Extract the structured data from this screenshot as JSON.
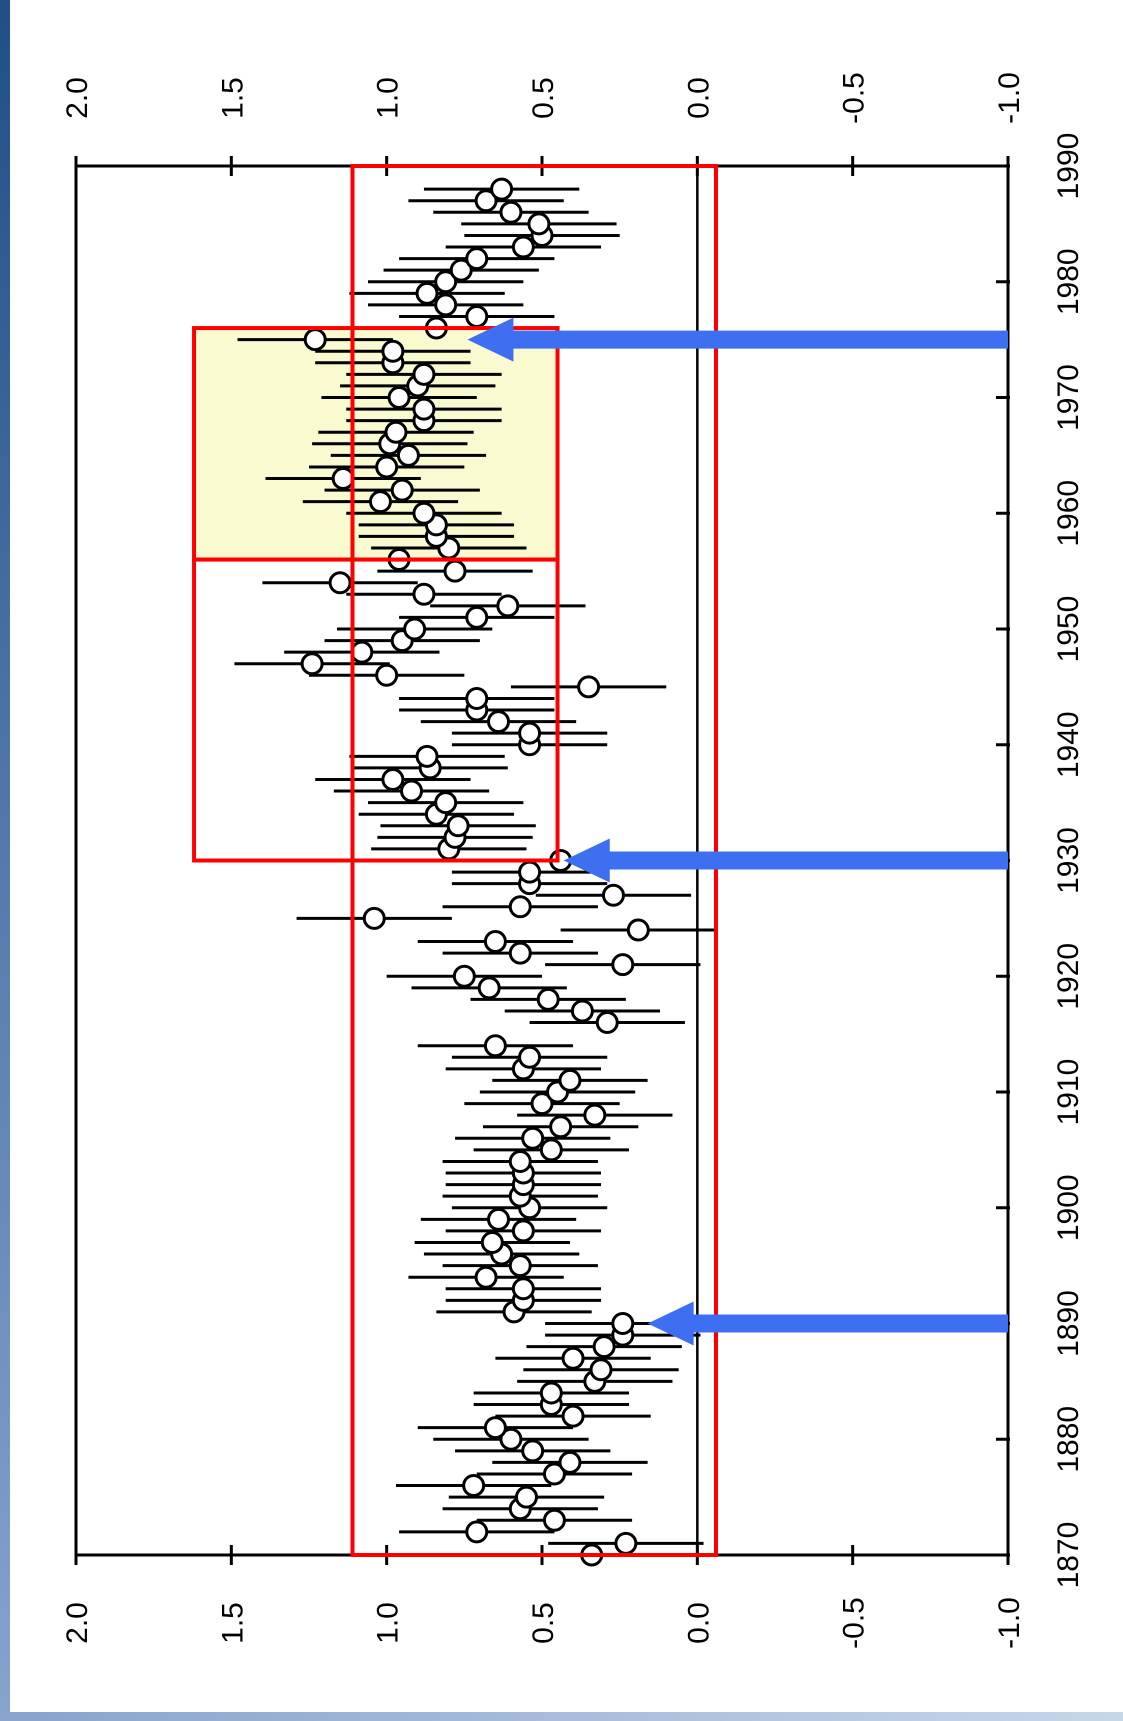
{
  "chart_data": {
    "type": "scatter",
    "orientation": "rotated-90",
    "title": "",
    "xlabel": "",
    "ylabel": "",
    "xlim": [
      1870,
      1990
    ],
    "ylim": [
      -1.0,
      2.0
    ],
    "x_ticks": [
      "1870",
      "1880",
      "1890",
      "1900",
      "1910",
      "1920",
      "1930",
      "1940",
      "1950",
      "1960",
      "1970",
      "1980",
      "1990"
    ],
    "y_ticks_left": [
      "2.0",
      "1.5",
      "1.0",
      "0.5",
      "0.0",
      "-0.5",
      "-1.0"
    ],
    "y_ticks_right": [
      "-1.0",
      "-0.5",
      "0.0",
      "0.5",
      "1.0",
      "1.5",
      "2.0"
    ],
    "zero_line": 0.0,
    "error_bar_halfwidth": 0.25,
    "series": [
      {
        "marker": "open-circle",
        "points": [
          [
            1870,
            0.34
          ],
          [
            1871,
            0.23
          ],
          [
            1872,
            0.71
          ],
          [
            1873,
            0.46
          ],
          [
            1874,
            0.57
          ],
          [
            1875,
            0.55
          ],
          [
            1876,
            0.72
          ],
          [
            1877,
            0.46
          ],
          [
            1878,
            0.41
          ],
          [
            1879,
            0.53
          ],
          [
            1880,
            0.6
          ],
          [
            1881,
            0.65
          ],
          [
            1882,
            0.4
          ],
          [
            1883,
            0.47
          ],
          [
            1884,
            0.47
          ],
          [
            1885,
            0.33
          ],
          [
            1886,
            0.31
          ],
          [
            1887,
            0.4
          ],
          [
            1888,
            0.3
          ],
          [
            1889,
            0.24
          ],
          [
            1890,
            0.24
          ],
          [
            1891,
            0.59
          ],
          [
            1892,
            0.56
          ],
          [
            1893,
            0.56
          ],
          [
            1894,
            0.68
          ],
          [
            1895,
            0.57
          ],
          [
            1896,
            0.63
          ],
          [
            1897,
            0.66
          ],
          [
            1898,
            0.56
          ],
          [
            1899,
            0.64
          ],
          [
            1900,
            0.54
          ],
          [
            1901,
            0.57
          ],
          [
            1902,
            0.56
          ],
          [
            1903,
            0.56
          ],
          [
            1904,
            0.57
          ],
          [
            1905,
            0.47
          ],
          [
            1906,
            0.53
          ],
          [
            1907,
            0.44
          ],
          [
            1908,
            0.33
          ],
          [
            1909,
            0.5
          ],
          [
            1910,
            0.45
          ],
          [
            1911,
            0.41
          ],
          [
            1912,
            0.56
          ],
          [
            1913,
            0.54
          ],
          [
            1914,
            0.65
          ],
          [
            1916,
            0.29
          ],
          [
            1917,
            0.37
          ],
          [
            1918,
            0.48
          ],
          [
            1919,
            0.67
          ],
          [
            1920,
            0.75
          ],
          [
            1921,
            0.24
          ],
          [
            1922,
            0.57
          ],
          [
            1923,
            0.65
          ],
          [
            1924,
            0.19
          ],
          [
            1925,
            1.04
          ],
          [
            1926,
            0.57
          ],
          [
            1927,
            0.27
          ],
          [
            1928,
            0.54
          ],
          [
            1929,
            0.54
          ],
          [
            1930,
            0.44
          ],
          [
            1931,
            0.8
          ],
          [
            1932,
            0.78
          ],
          [
            1933,
            0.77
          ],
          [
            1934,
            0.84
          ],
          [
            1935,
            0.81
          ],
          [
            1936,
            0.92
          ],
          [
            1937,
            0.98
          ],
          [
            1938,
            0.86
          ],
          [
            1939,
            0.87
          ],
          [
            1940,
            0.54
          ],
          [
            1941,
            0.54
          ],
          [
            1942,
            0.64
          ],
          [
            1943,
            0.71
          ],
          [
            1944,
            0.71
          ],
          [
            1945,
            0.35
          ],
          [
            1946,
            1.0
          ],
          [
            1947,
            1.24
          ],
          [
            1948,
            1.08
          ],
          [
            1949,
            0.95
          ],
          [
            1950,
            0.91
          ],
          [
            1951,
            0.71
          ],
          [
            1952,
            0.61
          ],
          [
            1953,
            0.88
          ],
          [
            1954,
            1.15
          ],
          [
            1955,
            0.78
          ],
          [
            1956,
            0.96
          ],
          [
            1957,
            0.8
          ],
          [
            1958,
            0.84
          ],
          [
            1959,
            0.84
          ],
          [
            1960,
            0.88
          ],
          [
            1961,
            1.02
          ],
          [
            1962,
            0.95
          ],
          [
            1963,
            1.14
          ],
          [
            1964,
            1.0
          ],
          [
            1965,
            0.93
          ],
          [
            1966,
            0.99
          ],
          [
            1967,
            0.97
          ],
          [
            1968,
            0.88
          ],
          [
            1969,
            0.88
          ],
          [
            1970,
            0.96
          ],
          [
            1971,
            0.9
          ],
          [
            1972,
            0.88
          ],
          [
            1973,
            0.98
          ],
          [
            1974,
            0.98
          ],
          [
            1975,
            1.23
          ],
          [
            1976,
            0.84
          ],
          [
            1977,
            0.71
          ],
          [
            1978,
            0.81
          ],
          [
            1979,
            0.87
          ],
          [
            1980,
            0.81
          ],
          [
            1981,
            0.76
          ],
          [
            1982,
            0.71
          ],
          [
            1983,
            0.56
          ],
          [
            1984,
            0.5
          ],
          [
            1985,
            0.51
          ],
          [
            1986,
            0.6
          ],
          [
            1987,
            0.68
          ],
          [
            1988,
            0.63
          ]
        ]
      }
    ],
    "annotations": {
      "outer_box": {
        "x_range": [
          1870,
          1990
        ],
        "y_range": [
          -0.06,
          1.11
        ],
        "color": "#ff0000"
      },
      "inner_box_lower": {
        "x_range": [
          1930,
          1956
        ],
        "y_range": [
          0.45,
          1.62
        ],
        "color": "#ff0000"
      },
      "inner_box_upper": {
        "x_range": [
          1956,
          1976
        ],
        "y_range": [
          0.45,
          1.62
        ],
        "color": "#ff0000",
        "fill": "#fafad0"
      },
      "arrows": [
        {
          "year": 1890,
          "value_tip": 0.16,
          "color": "#3d6ff0"
        },
        {
          "year": 1930,
          "value_tip": 0.43,
          "color": "#3d6ff0"
        },
        {
          "year": 1975,
          "value_tip": 0.74,
          "color": "#3d6ff0"
        }
      ]
    }
  }
}
